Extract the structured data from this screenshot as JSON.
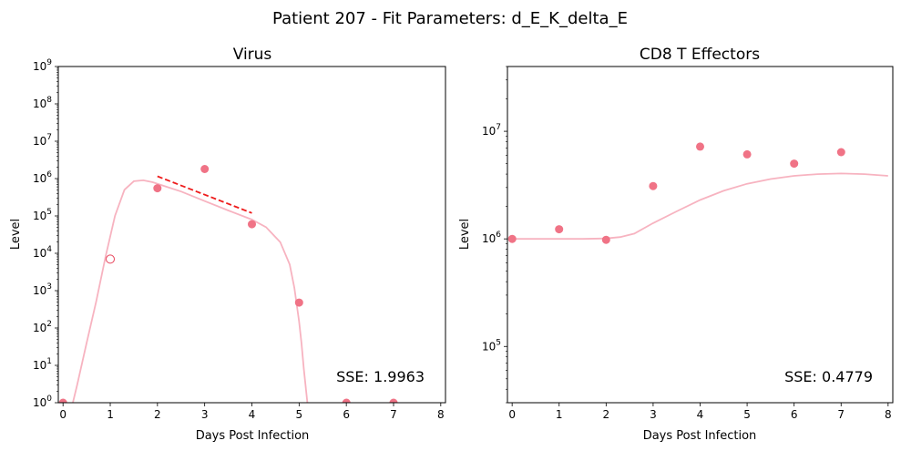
{
  "figure": {
    "suptitle": "Patient 207 - Fit Parameters: d_E_K_delta_E"
  },
  "chart_data": [
    {
      "type": "scatter",
      "title": "Virus",
      "xlabel": "Days Post Infection",
      "ylabel": "Level",
      "yscale": "log",
      "xlim": [
        -0.1,
        8.1
      ],
      "ylim": [
        1,
        1000000000
      ],
      "xticks": [
        "0",
        "1",
        "2",
        "3",
        "4",
        "5",
        "6",
        "7",
        "8"
      ],
      "yticks": [
        "10^0",
        "10^1",
        "10^2",
        "10^3",
        "10^4",
        "10^5",
        "10^6",
        "10^7",
        "10^8",
        "10^9"
      ],
      "annotation": "SSE: 1.9963",
      "series": [
        {
          "kind": "points_filled",
          "color": "#f07386",
          "x": [
            0,
            2,
            3,
            4,
            5,
            6,
            7
          ],
          "y": [
            1,
            550000,
            1800000,
            60000,
            480,
            1,
            1
          ]
        },
        {
          "kind": "points_open",
          "color": "#e8455c",
          "x": [
            1
          ],
          "y": [
            7000
          ]
        },
        {
          "kind": "fit_line",
          "color": "#f7b3c0",
          "x": [
            0.15,
            0.3,
            0.5,
            0.7,
            0.9,
            1.1,
            1.3,
            1.5,
            1.7,
            1.9,
            2.2,
            2.5,
            3.0,
            3.5,
            4.0,
            4.3,
            4.6,
            4.8,
            4.9,
            5.0,
            5.05,
            5.1,
            5.15,
            5.2
          ],
          "y": [
            0.5,
            3,
            40,
            500,
            8000,
            100000,
            500000,
            850000,
            900000,
            800000,
            600000,
            450000,
            250000,
            140000,
            80000,
            50000,
            20000,
            5000,
            1200,
            150,
            40,
            8,
            2,
            0.5
          ]
        },
        {
          "kind": "dashed_line",
          "color": "#ee1c1c",
          "x": [
            2,
            4
          ],
          "y": [
            1150000,
            120000
          ]
        }
      ]
    },
    {
      "type": "scatter",
      "title": "CD8 T Effectors",
      "xlabel": "Days Post Infection",
      "ylabel": "Level",
      "yscale": "log",
      "xlim": [
        -0.1,
        8.1
      ],
      "ylim": [
        30000,
        40000000
      ],
      "xticks": [
        "0",
        "1",
        "2",
        "3",
        "4",
        "5",
        "6",
        "7",
        "8"
      ],
      "yticks": [
        "10^5",
        "10^6",
        "10^7"
      ],
      "annotation": "SSE: 0.4779",
      "series": [
        {
          "kind": "points_filled",
          "color": "#f07386",
          "x": [
            0,
            1,
            2,
            3,
            4,
            5,
            6,
            7
          ],
          "y": [
            1000000,
            1230000,
            980000,
            3100000,
            7200000,
            6100000,
            5000000,
            6400000
          ]
        },
        {
          "kind": "fit_line",
          "color": "#f7b3c0",
          "x": [
            0,
            0.5,
            1,
            1.5,
            2,
            2.3,
            2.6,
            3,
            3.5,
            4,
            4.5,
            5,
            5.5,
            6,
            6.5,
            7,
            7.5,
            8
          ],
          "y": [
            1000000,
            1000000,
            1000000,
            1000000,
            1010000,
            1040000,
            1120000,
            1400000,
            1800000,
            2300000,
            2800000,
            3250000,
            3600000,
            3850000,
            4000000,
            4050000,
            4000000,
            3850000
          ]
        }
      ]
    }
  ]
}
